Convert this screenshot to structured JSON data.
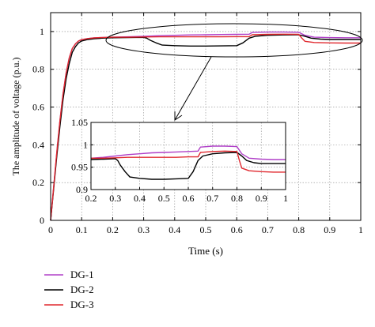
{
  "chart_data": {
    "type": "line",
    "title": "",
    "xlabel": "Time (s)",
    "ylabel": "The amplitude of voltage (p.u.)",
    "xlim": [
      0,
      1
    ],
    "ylim": [
      0,
      1.1
    ],
    "xticks": [
      "0",
      "0.1",
      "0.2",
      "0.3",
      "0.4",
      "0.5",
      "0.6",
      "0.7",
      "0.8",
      "0.9",
      "1"
    ],
    "yticks": [
      "0",
      "0.2",
      "0.4",
      "0.6",
      "0.8",
      "1"
    ],
    "legend_position": "bottom-left",
    "series": [
      {
        "name": "DG-1",
        "color": "#b040c8",
        "x": [
          0,
          0.01,
          0.02,
          0.03,
          0.04,
          0.05,
          0.06,
          0.07,
          0.08,
          0.09,
          0.1,
          0.12,
          0.14,
          0.16,
          0.18,
          0.2,
          0.25,
          0.3,
          0.35,
          0.4,
          0.45,
          0.5,
          0.55,
          0.6,
          0.64,
          0.65,
          0.7,
          0.75,
          0.8,
          0.82,
          0.85,
          0.9,
          0.95,
          1.0
        ],
        "y": [
          0,
          0.18,
          0.36,
          0.53,
          0.67,
          0.78,
          0.86,
          0.91,
          0.935,
          0.95,
          0.957,
          0.963,
          0.966,
          0.968,
          0.969,
          0.97,
          0.972,
          0.975,
          0.978,
          0.98,
          0.982,
          0.983,
          0.984,
          0.985,
          0.986,
          0.995,
          0.997,
          0.997,
          0.996,
          0.98,
          0.97,
          0.968,
          0.967,
          0.967
        ]
      },
      {
        "name": "DG-2",
        "color": "#000000",
        "x": [
          0,
          0.01,
          0.02,
          0.03,
          0.04,
          0.05,
          0.06,
          0.07,
          0.08,
          0.09,
          0.1,
          0.12,
          0.14,
          0.16,
          0.18,
          0.2,
          0.25,
          0.3,
          0.31,
          0.32,
          0.34,
          0.36,
          0.4,
          0.45,
          0.5,
          0.55,
          0.6,
          0.62,
          0.64,
          0.66,
          0.7,
          0.75,
          0.8,
          0.82,
          0.84,
          0.87,
          0.9,
          0.95,
          1.0
        ],
        "y": [
          0,
          0.17,
          0.34,
          0.5,
          0.64,
          0.75,
          0.83,
          0.89,
          0.92,
          0.94,
          0.95,
          0.958,
          0.962,
          0.964,
          0.966,
          0.967,
          0.968,
          0.969,
          0.965,
          0.955,
          0.94,
          0.928,
          0.925,
          0.923,
          0.923,
          0.924,
          0.925,
          0.94,
          0.965,
          0.975,
          0.98,
          0.982,
          0.983,
          0.975,
          0.965,
          0.96,
          0.958,
          0.958,
          0.958
        ]
      },
      {
        "name": "DG-3",
        "color": "#e0282e",
        "x": [
          0,
          0.01,
          0.02,
          0.03,
          0.04,
          0.05,
          0.06,
          0.07,
          0.08,
          0.09,
          0.1,
          0.12,
          0.14,
          0.16,
          0.18,
          0.2,
          0.25,
          0.3,
          0.35,
          0.4,
          0.45,
          0.5,
          0.55,
          0.6,
          0.64,
          0.65,
          0.7,
          0.75,
          0.8,
          0.81,
          0.82,
          0.85,
          0.9,
          0.95,
          1.0
        ],
        "y": [
          0,
          0.18,
          0.36,
          0.53,
          0.67,
          0.78,
          0.86,
          0.91,
          0.935,
          0.95,
          0.957,
          0.963,
          0.966,
          0.968,
          0.969,
          0.97,
          0.97,
          0.971,
          0.972,
          0.972,
          0.972,
          0.972,
          0.972,
          0.973,
          0.973,
          0.983,
          0.985,
          0.986,
          0.985,
          0.965,
          0.948,
          0.942,
          0.94,
          0.939,
          0.939
        ]
      }
    ],
    "inset": {
      "xlim": [
        0.2,
        1
      ],
      "ylim": [
        0.9,
        1.05
      ],
      "xticks": [
        "0.2",
        "0.3",
        "0.4",
        "0.5",
        "0.6",
        "0.7",
        "0.8",
        "0.9",
        "1"
      ],
      "yticks": [
        "0.9",
        "0.95",
        "1",
        "1.05"
      ]
    }
  }
}
